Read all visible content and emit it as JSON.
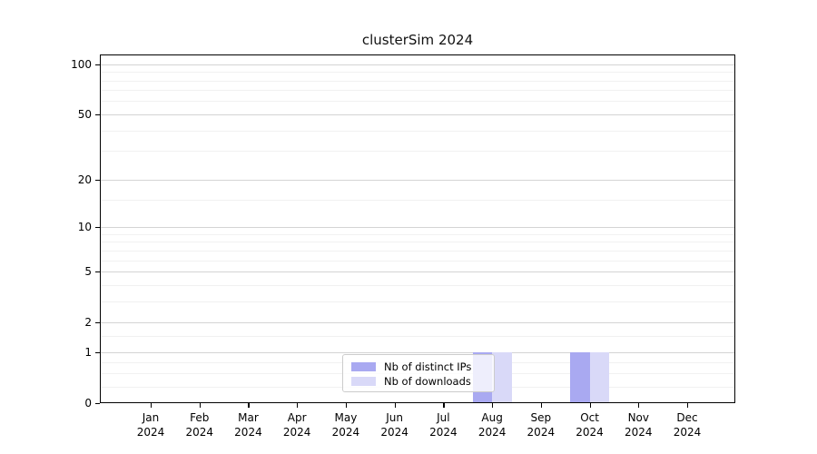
{
  "chart": {
    "title": "clusterSim 2024"
  },
  "chart_data": {
    "type": "bar",
    "title": "clusterSim 2024",
    "categories": [
      "Jan 2024",
      "Feb 2024",
      "Mar 2024",
      "Apr 2024",
      "May 2024",
      "Jun 2024",
      "Jul 2024",
      "Aug 2024",
      "Sep 2024",
      "Oct 2024",
      "Nov 2024",
      "Dec 2024"
    ],
    "series": [
      {
        "name": "Nb of distinct IPs",
        "color": "#a9a9f1",
        "values": [
          0,
          0,
          0,
          0,
          0,
          0,
          0,
          1,
          0,
          1,
          0,
          0
        ]
      },
      {
        "name": "Nb of downloads",
        "color": "#d9d9f8",
        "values": [
          0,
          0,
          0,
          0,
          0,
          0,
          0,
          1,
          0,
          1,
          0,
          0
        ]
      }
    ],
    "xlabel": "",
    "ylabel": "",
    "y_scale": "log1p",
    "y_ticks": [
      0,
      1,
      2,
      5,
      10,
      20,
      50,
      100
    ],
    "y_minor_ticks": [
      0.25,
      0.5,
      0.75,
      1.5,
      3,
      4,
      6,
      7,
      8,
      9,
      15,
      30,
      40,
      60,
      70,
      80,
      90
    ],
    "ylim": [
      0,
      114.3
    ],
    "grid": true,
    "legend_position": "lower center"
  }
}
